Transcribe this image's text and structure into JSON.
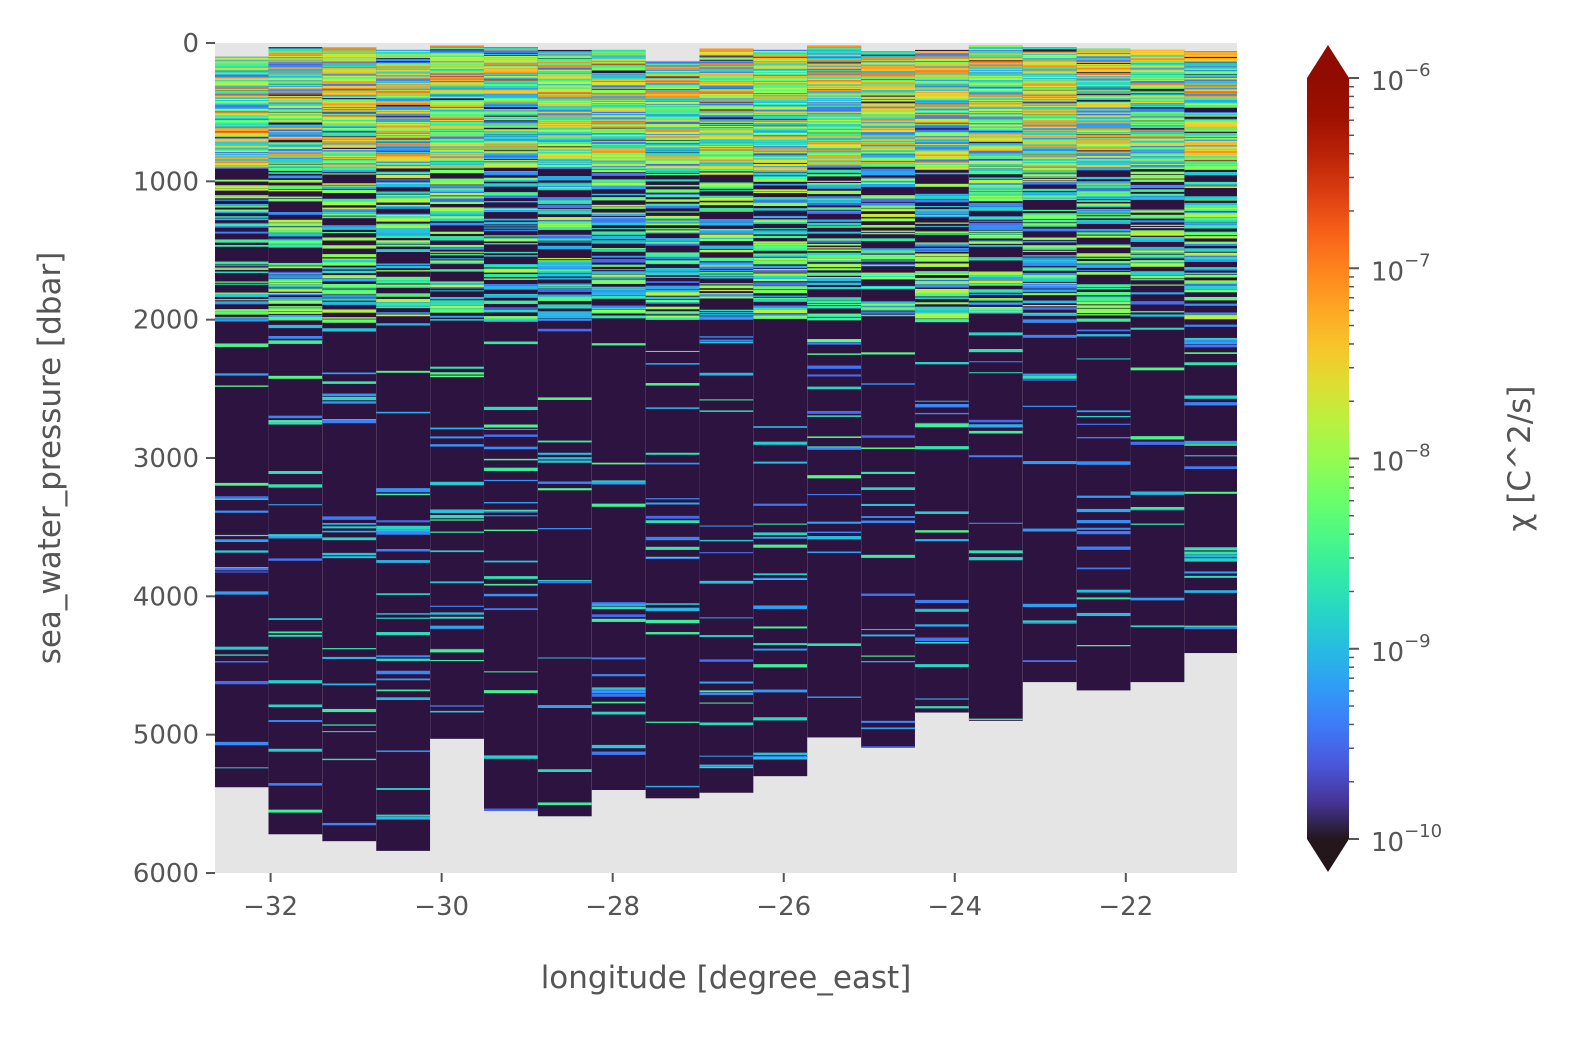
{
  "chart_data": {
    "type": "heatmap",
    "title": "",
    "xlabel": "longitude [degree_east]",
    "ylabel": "sea_water_pressure [dbar]",
    "xlim": [
      -32.65,
      -20.7
    ],
    "ylim": [
      6000,
      0
    ],
    "x_ticks": [
      -32,
      -30,
      -28,
      -26,
      -24,
      -22
    ],
    "x_tick_labels": [
      "−32",
      "−30",
      "−28",
      "−26",
      "−24",
      "−22"
    ],
    "y_ticks": [
      0,
      1000,
      2000,
      3000,
      4000,
      5000,
      6000
    ],
    "y_tick_labels": [
      "0",
      "1000",
      "2000",
      "3000",
      "4000",
      "5000",
      "6000"
    ],
    "grid": false,
    "colorbar": {
      "label": "χ [C^2/s]",
      "scale": "log",
      "vmin": 1e-10,
      "vmax": 1e-06,
      "extend": "both",
      "colormap": "turbo",
      "tick_values": [
        1e-10,
        1e-09,
        1e-08,
        1e-07,
        1e-06
      ],
      "tick_base": "10",
      "tick_exponents": [
        "−10",
        "−9",
        "−8",
        "−7",
        "−6"
      ]
    },
    "colors": {
      "missing": "#e5e5e5",
      "background": "#2d1340",
      "text": "#555555"
    },
    "stations": [
      {
        "lon": -32.34,
        "top": 100,
        "bottom": 5380
      },
      {
        "lon": -31.71,
        "top": 30,
        "bottom": 5720
      },
      {
        "lon": -31.08,
        "top": 30,
        "bottom": 5770
      },
      {
        "lon": -30.45,
        "top": 50,
        "bottom": 5840
      },
      {
        "lon": -29.82,
        "top": 20,
        "bottom": 5030
      },
      {
        "lon": -29.19,
        "top": 30,
        "bottom": 5550
      },
      {
        "lon": -28.56,
        "top": 50,
        "bottom": 5590
      },
      {
        "lon": -27.93,
        "top": 50,
        "bottom": 5400
      },
      {
        "lon": -27.3,
        "top": 130,
        "bottom": 5460
      },
      {
        "lon": -26.67,
        "top": 40,
        "bottom": 5420
      },
      {
        "lon": -26.04,
        "top": 50,
        "bottom": 5300
      },
      {
        "lon": -25.41,
        "top": 20,
        "bottom": 5020
      },
      {
        "lon": -24.78,
        "top": 60,
        "bottom": 5090
      },
      {
        "lon": -24.15,
        "top": 50,
        "bottom": 4840
      },
      {
        "lon": -23.52,
        "top": 20,
        "bottom": 4900
      },
      {
        "lon": -22.89,
        "top": 30,
        "bottom": 4620
      },
      {
        "lon": -22.26,
        "top": 40,
        "bottom": 4680
      },
      {
        "lon": -21.63,
        "top": 50,
        "bottom": 4620
      },
      {
        "lon": -21.0,
        "top": 60,
        "bottom": 4410
      }
    ]
  }
}
